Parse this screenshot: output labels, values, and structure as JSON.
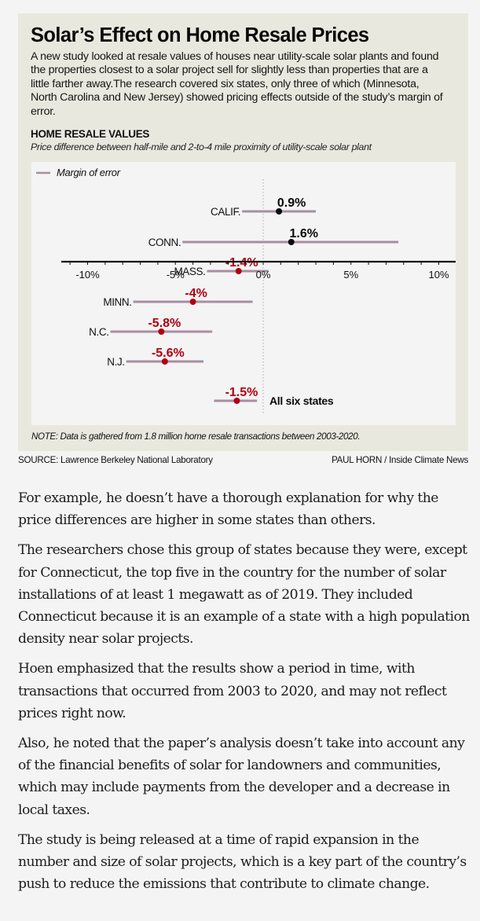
{
  "infographic": {
    "title": "Solar’s Effect on Home Resale Prices",
    "dek": "A new study looked at resale values of houses near utility-scale solar plants and found the properties closest to a solar project sell for slightly less than properties that are a little farther away.The research covered six states, only three of which (Minnesota, North Carolina and New Jersey) showed pricing effects outside of the study’s margin of error.",
    "chart_heading": "HOME RESALE VALUES",
    "chart_subheading": "Price difference between half-mile and 2-to-4 mile proximity of utility-scale solar plant",
    "note": "NOTE: Data is gathered from 1.8 million home resale transactions between 2003-2020.",
    "source": "SOURCE: Lawrence Berkeley National Laboratory",
    "byline": "PAUL HORN / Inside Climate News"
  },
  "colors": {
    "positive": "#0a0a0a",
    "negative": "#b00010",
    "margin_bar": "#a88ea0",
    "axis": "#111111",
    "zero_line": "#aaaaaa"
  },
  "chart_data": {
    "type": "scatter",
    "subtype": "dot-with-error-bars",
    "title": "HOME RESALE VALUES",
    "subtitle": "Price difference between half-mile and 2-to-4 mile proximity of utility-scale solar plant",
    "xlabel": "",
    "ylabel": "",
    "xlim": [
      -11.5,
      11.5
    ],
    "x_ticks": [
      -10,
      -5,
      0,
      5,
      10
    ],
    "x_tick_labels": [
      "-10%",
      "-5%",
      "0%",
      "5%",
      "10%"
    ],
    "minor_tick_step": 1,
    "grid": false,
    "legend": {
      "position": "top-left",
      "entries": [
        {
          "label": "Margin of error",
          "marker": "line"
        }
      ]
    },
    "series": [
      {
        "name": "CALIF.",
        "value": 0.9,
        "label": "0.9%",
        "low": -1.2,
        "high": 3.0
      },
      {
        "name": "CONN.",
        "value": 1.6,
        "label": "1.6%",
        "low": -4.6,
        "high": 7.7
      },
      {
        "name": "MASS.",
        "value": -1.4,
        "label": "-1.4%",
        "low": -3.2,
        "high": 0.3
      },
      {
        "name": "MINN.",
        "value": -4.0,
        "label": "-4%",
        "low": -7.4,
        "high": -0.6
      },
      {
        "name": "N.C.",
        "value": -5.8,
        "label": "-5.8%",
        "low": -8.7,
        "high": -2.9
      },
      {
        "name": "N.J.",
        "value": -5.6,
        "label": "-5.6%",
        "low": -7.8,
        "high": -3.4
      },
      {
        "name": "All six states",
        "value": -1.5,
        "label": "-1.5%",
        "low": -2.8,
        "high": -0.35,
        "summary": true
      }
    ]
  },
  "article": {
    "paragraphs": [
      "For example, he doesn’t have a thorough explanation for why the price differences are higher in some states than others.",
      "The researchers chose this group of states because they were, except for Connecticut, the top five in the country for the number of solar installations of at least 1 megawatt as of 2019. They included Connecticut because it is an example of a state with a high population density near solar projects.",
      "Hoen emphasized that the results show a period in time, with transactions that occurred from 2003 to 2020, and may not reflect prices right now.",
      "Also, he noted that the paper’s analysis doesn’t take into account any of the financial benefits of solar for landowners and communities, which may include payments from the developer and a decrease in local taxes.",
      "The study is being released at a time of rapid expansion in the number and size of solar projects, which is a key part of the country’s push to reduce the emissions that contribute to climate change."
    ]
  }
}
